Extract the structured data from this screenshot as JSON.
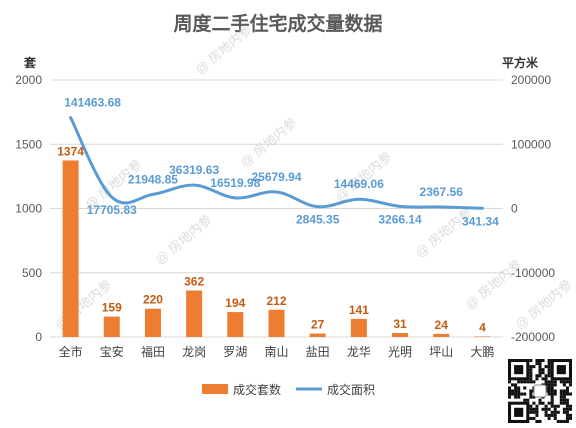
{
  "chart_data": {
    "type": "bar",
    "title": "周度二手住宅成交量数据",
    "categories": [
      "全市",
      "宝安",
      "福田",
      "龙岗",
      "罗湖",
      "南山",
      "盐田",
      "龙华",
      "光明",
      "坪山",
      "大鹏"
    ],
    "series": [
      {
        "name": "成交套数",
        "type": "bar",
        "axis": "left",
        "color": "#ED7D31",
        "values": [
          1374,
          159,
          220,
          362,
          194,
          212,
          27,
          141,
          31,
          24,
          4
        ],
        "labels": [
          "1374",
          "159",
          "220",
          "362",
          "194",
          "212",
          "27",
          "141",
          "31",
          "24",
          "4"
        ]
      },
      {
        "name": "成交面积",
        "type": "line",
        "axis": "right",
        "color": "#5B9BD5",
        "values": [
          141463.68,
          17705.83,
          21948.85,
          36319.63,
          16519.98,
          25679.94,
          2845.35,
          14469.06,
          3266.14,
          2367.56,
          341.34
        ],
        "labels": [
          "141463.68",
          "17705.83",
          "21948.85",
          "36319.63",
          "16519.98",
          "25679.94",
          "2845.35",
          "14469.06",
          "3266.14",
          "2367.56",
          "341.34"
        ]
      }
    ],
    "y_left": {
      "label": "套",
      "range": [
        0,
        2000
      ],
      "ticks": [
        "0",
        "500",
        "1000",
        "1500",
        "2000"
      ],
      "tick_values": [
        0,
        500,
        1000,
        1500,
        2000
      ]
    },
    "y_right": {
      "label": "平方米",
      "range": [
        -200000,
        200000
      ],
      "ticks": [
        "-200000",
        "-100000",
        "0",
        "100000",
        "200000"
      ],
      "tick_values": [
        -200000,
        -100000,
        0,
        100000,
        200000
      ]
    },
    "grid": true,
    "legend_position": "bottom"
  },
  "watermark_text": "@ 房地内参",
  "qr_code_icon": "qr-code-icon"
}
